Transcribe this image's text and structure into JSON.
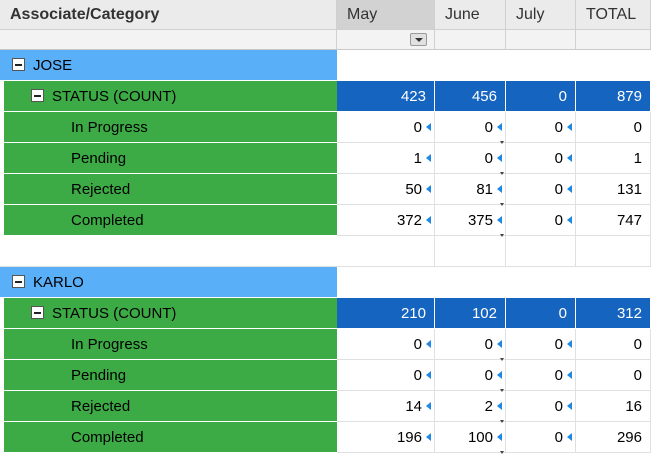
{
  "columns": {
    "associate": "Associate/Category",
    "months": [
      "May",
      "June",
      "July"
    ],
    "total": "TOTAL"
  },
  "groups": [
    {
      "name": "JOSE",
      "status_label": "STATUS (COUNT)",
      "totals": [
        "423",
        "456",
        "0",
        "879"
      ],
      "items": [
        {
          "label": "In Progress",
          "values": [
            "0",
            "0",
            "0",
            "0"
          ]
        },
        {
          "label": "Pending",
          "values": [
            "1",
            "0",
            "0",
            "1"
          ]
        },
        {
          "label": "Rejected",
          "values": [
            "50",
            "81",
            "0",
            "131"
          ]
        },
        {
          "label": "Completed",
          "values": [
            "372",
            "375",
            "0",
            "747"
          ]
        }
      ]
    },
    {
      "name": "KARLO",
      "status_label": "STATUS (COUNT)",
      "totals": [
        "210",
        "102",
        "0",
        "312"
      ],
      "items": [
        {
          "label": "In Progress",
          "values": [
            "0",
            "0",
            "0",
            "0"
          ]
        },
        {
          "label": "Pending",
          "values": [
            "0",
            "0",
            "0",
            "0"
          ]
        },
        {
          "label": "Rejected",
          "values": [
            "14",
            "2",
            "0",
            "16"
          ]
        },
        {
          "label": "Completed",
          "values": [
            "196",
            "100",
            "0",
            "296"
          ]
        }
      ]
    }
  ],
  "colors": {
    "associate_row": "#5aaff9",
    "category_row": "#3dab45",
    "status_total": "#1565c0",
    "selected_header": "#d2d2d2"
  }
}
